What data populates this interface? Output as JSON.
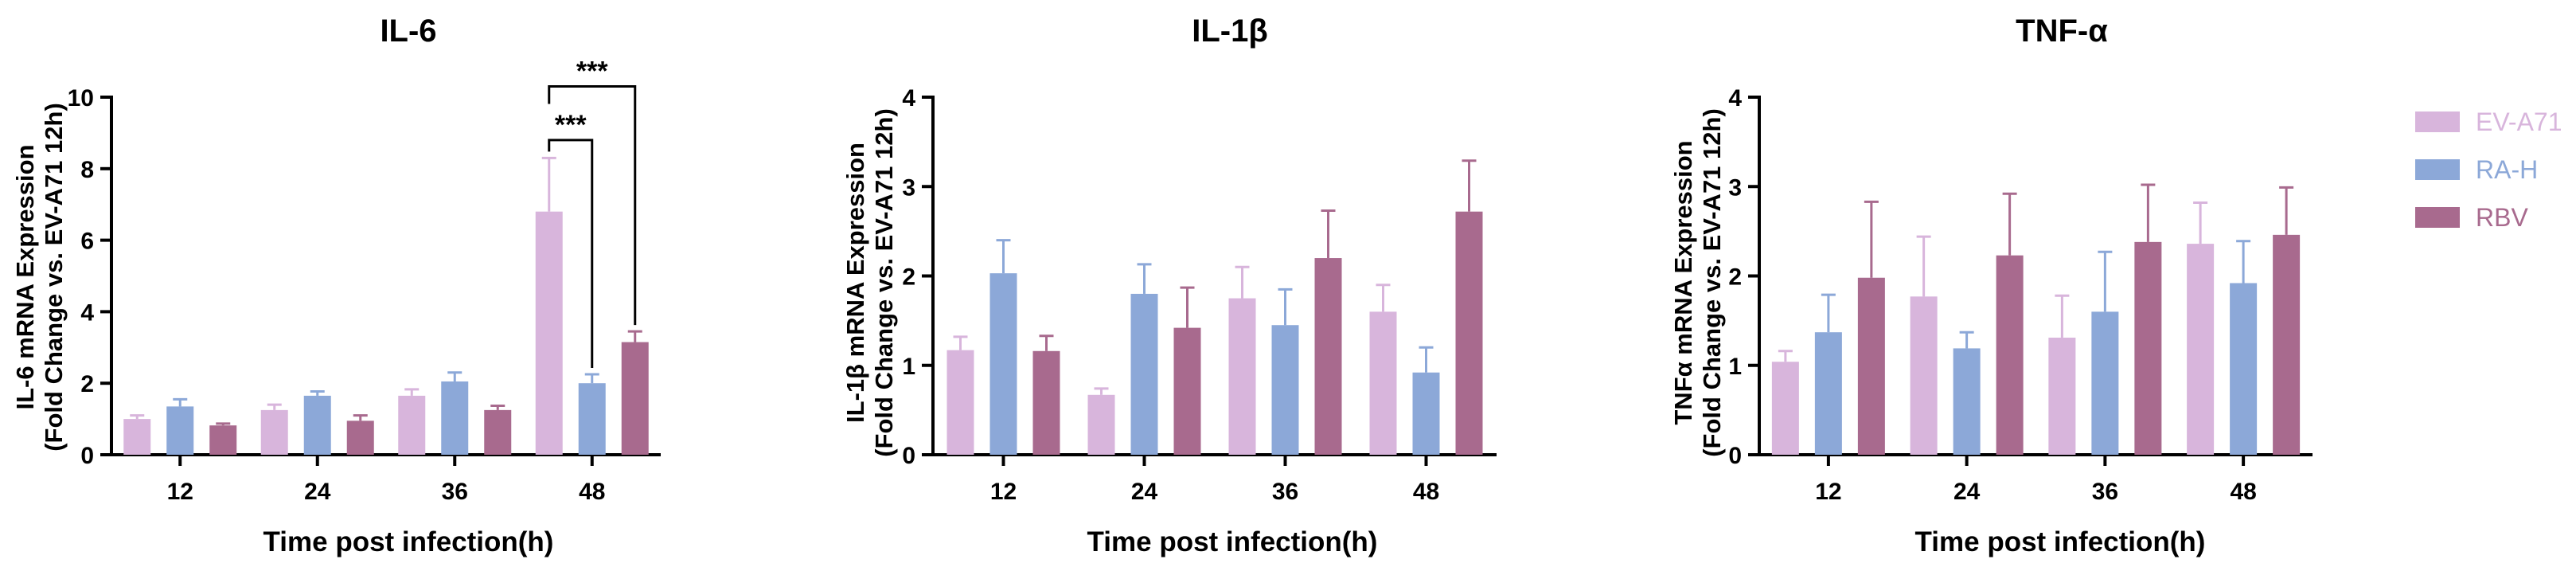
{
  "colors": {
    "EV-A71": "#d8b5dc",
    "RA-H": "#8ca8d8",
    "RBV": "#a86a8e",
    "axis": "#000000"
  },
  "legend": {
    "position": "right",
    "entries": [
      "EV-A71",
      "RA-H",
      "RBV"
    ]
  },
  "chart_data": [
    {
      "type": "bar",
      "title": "IL-6",
      "xlabel": "Time post infection(h)",
      "ylabel_line1": "IL-6 mRNA Expression",
      "ylabel_line2": "(Fold Change vs. EV-A71 12h)",
      "categories": [
        "12",
        "24",
        "36",
        "48"
      ],
      "ylim": [
        0,
        10
      ],
      "yticks": [
        "0",
        "2",
        "4",
        "6",
        "8",
        "10"
      ],
      "series": [
        {
          "name": "EV-A71",
          "values": [
            1.0,
            1.25,
            1.65,
            6.8
          ],
          "errors": [
            0.1,
            0.15,
            0.18,
            1.5
          ]
        },
        {
          "name": "RA-H",
          "values": [
            1.35,
            1.65,
            2.05,
            2.0
          ],
          "errors": [
            0.2,
            0.12,
            0.25,
            0.25
          ]
        },
        {
          "name": "RBV",
          "values": [
            0.82,
            0.95,
            1.25,
            3.15
          ],
          "errors": [
            0.05,
            0.15,
            0.12,
            0.3
          ]
        }
      ],
      "significance": [
        {
          "label": "***",
          "category": "48",
          "from": "EV-A71",
          "to": "RA-H",
          "y": 8.8
        },
        {
          "label": "***",
          "category": "48",
          "from": "EV-A71",
          "to": "RBV",
          "y": 10.3
        }
      ]
    },
    {
      "type": "bar",
      "title": "IL-1β",
      "xlabel": "Time post infection(h)",
      "ylabel_line1": "IL-1β mRNA Expression",
      "ylabel_line2": "(Fold Change vs. EV-A71 12h)",
      "categories": [
        "12",
        "24",
        "36",
        "48"
      ],
      "ylim": [
        0,
        4
      ],
      "yticks": [
        "0",
        "1",
        "2",
        "3",
        "4"
      ],
      "series": [
        {
          "name": "EV-A71",
          "values": [
            1.17,
            0.67,
            1.75,
            1.6
          ],
          "errors": [
            0.15,
            0.07,
            0.35,
            0.3
          ]
        },
        {
          "name": "RA-H",
          "values": [
            2.03,
            1.8,
            1.45,
            0.92
          ],
          "errors": [
            0.37,
            0.33,
            0.4,
            0.28
          ]
        },
        {
          "name": "RBV",
          "values": [
            1.16,
            1.42,
            2.2,
            2.72
          ],
          "errors": [
            0.17,
            0.45,
            0.53,
            0.57
          ]
        }
      ],
      "significance": []
    },
    {
      "type": "bar",
      "title": "TNF-α",
      "xlabel": "Time post infection(h)",
      "ylabel_line1": "TNFα mRNA Expression",
      "ylabel_line2": "(Fold Change vs. EV-A71 12h)",
      "categories": [
        "12",
        "24",
        "36",
        "48"
      ],
      "ylim": [
        0,
        4
      ],
      "yticks": [
        "0",
        "1",
        "2",
        "3",
        "4"
      ],
      "series": [
        {
          "name": "EV-A71",
          "values": [
            1.04,
            1.77,
            1.31,
            2.36
          ],
          "errors": [
            0.12,
            0.67,
            0.47,
            0.46
          ]
        },
        {
          "name": "RA-H",
          "values": [
            1.37,
            1.19,
            1.6,
            1.92
          ],
          "errors": [
            0.42,
            0.18,
            0.67,
            0.47
          ]
        },
        {
          "name": "RBV",
          "values": [
            1.98,
            2.23,
            2.38,
            2.46
          ],
          "errors": [
            0.85,
            0.69,
            0.64,
            0.53
          ]
        }
      ],
      "significance": []
    }
  ]
}
